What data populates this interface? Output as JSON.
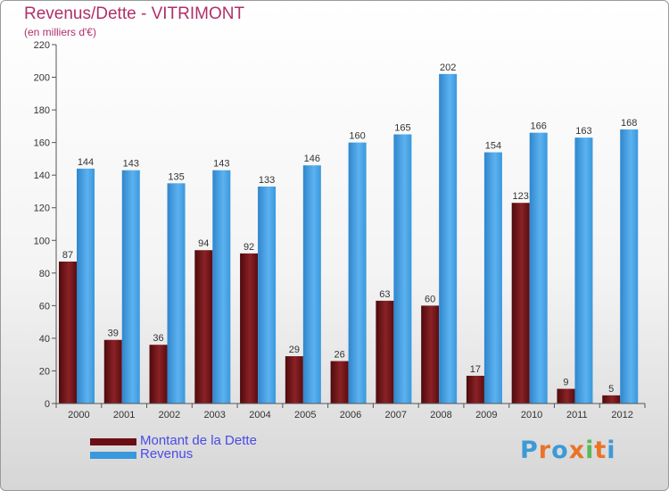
{
  "title": "Revenus/Dette - VITRIMONT",
  "subtitle": "(en milliers d'€)",
  "logo": {
    "letters": [
      "P",
      "r",
      "o",
      "x",
      "i",
      "t",
      "i"
    ],
    "colors": [
      "#3c9ad6",
      "#e8742a",
      "#3c9ad6",
      "#e8742a",
      "#5cb85c",
      "#e8742a",
      "#3c9ad6"
    ]
  },
  "legend": [
    {
      "label": "Montant de la Dette",
      "color": "#6b0f14"
    },
    {
      "label": "Revenus",
      "color": "#3a98dc"
    }
  ],
  "chart_data": {
    "type": "bar",
    "categories": [
      "2000",
      "2001",
      "2002",
      "2003",
      "2004",
      "2005",
      "2006",
      "2007",
      "2008",
      "2009",
      "2010",
      "2011",
      "2012"
    ],
    "series": [
      {
        "name": "Montant de la Dette",
        "color": "#6b0f14",
        "values": [
          87,
          39,
          36,
          94,
          92,
          29,
          26,
          63,
          60,
          17,
          123,
          9,
          5
        ]
      },
      {
        "name": "Revenus",
        "color": "#3a98dc",
        "values": [
          144,
          143,
          135,
          143,
          133,
          146,
          160,
          165,
          202,
          154,
          166,
          163,
          168
        ]
      }
    ],
    "ylim": [
      0,
      220
    ],
    "yticks": [
      0,
      20,
      40,
      60,
      80,
      100,
      120,
      140,
      160,
      180,
      200,
      220
    ],
    "grid": false,
    "legend_position": "bottom-left"
  }
}
